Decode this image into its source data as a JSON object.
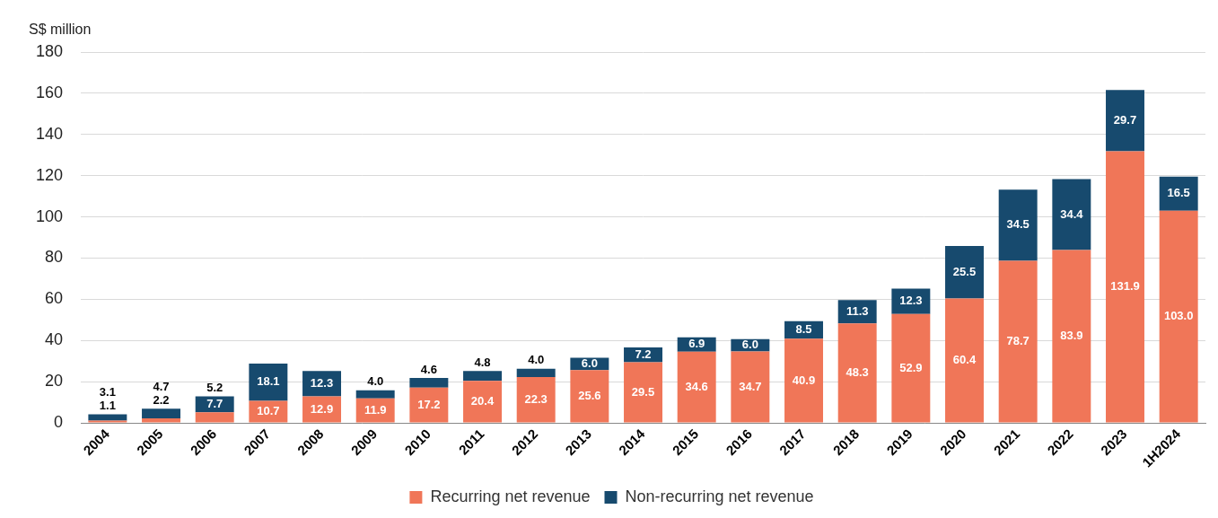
{
  "chart_data": {
    "type": "bar",
    "y_label": "S$ million",
    "categories": [
      "2004",
      "2005",
      "2006",
      "2007",
      "2008",
      "2009",
      "2010",
      "2011",
      "2012",
      "2013",
      "2014",
      "2015",
      "2016",
      "2017",
      "2018",
      "2019",
      "2020",
      "2021",
      "2022",
      "2023",
      "1H2024"
    ],
    "series": [
      {
        "name": "Recurring net revenue",
        "color": "#f07658",
        "values": [
          1.1,
          2.2,
          5.2,
          10.7,
          12.9,
          11.9,
          17.2,
          20.4,
          22.3,
          25.6,
          29.5,
          34.6,
          34.7,
          40.9,
          48.3,
          52.9,
          60.4,
          78.7,
          83.9,
          131.9,
          103.0
        ],
        "value_labels": [
          "1.1",
          "2.2",
          "5.2",
          "10.7",
          "12.9",
          "11.9",
          "17.2",
          "20.4",
          "22.3",
          "25.6",
          "29.5",
          "34.6",
          "34.7",
          "40.9",
          "48.3",
          "52.9",
          "60.4",
          "78.7",
          "83.9",
          "131.9",
          "103.0"
        ]
      },
      {
        "name": "Non-recurring net revenue",
        "color": "#174a6e",
        "values": [
          3.1,
          4.7,
          7.7,
          18.1,
          12.3,
          4.0,
          4.6,
          4.8,
          4.0,
          6.0,
          7.2,
          6.9,
          6.0,
          8.5,
          11.3,
          12.3,
          25.5,
          34.5,
          34.4,
          29.7,
          16.5
        ],
        "value_labels": [
          "3.1",
          "4.7",
          "7.7",
          "18.1",
          "12.3",
          "4.0",
          "4.6",
          "4.8",
          "4.0",
          "6.0",
          "7.2",
          "6.9",
          "6.0",
          "8.5",
          "11.3",
          "12.3",
          "25.5",
          "34.5",
          "34.4",
          "29.7",
          "16.5"
        ]
      }
    ],
    "ylim": [
      0,
      180
    ],
    "yticks": [
      0,
      20,
      40,
      60,
      80,
      100,
      120,
      140,
      160,
      180
    ],
    "grid": true,
    "stacked": true,
    "data_labels": true,
    "legend": "bottom"
  }
}
